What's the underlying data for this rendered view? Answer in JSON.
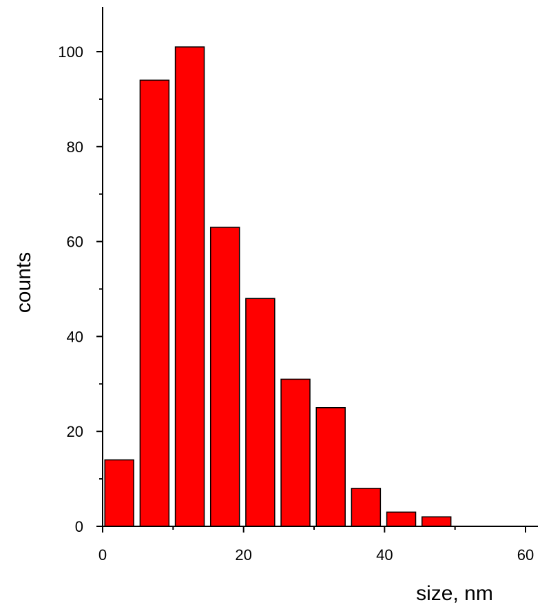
{
  "chart_data": {
    "type": "bar",
    "title": "",
    "xlabel": "size, nm",
    "ylabel": "counts",
    "xlim": [
      0,
      62
    ],
    "ylim": [
      0,
      110
    ],
    "x_ticks": [
      0,
      20,
      40,
      60
    ],
    "x_tick_labels": [
      "0",
      "20",
      "40",
      "60"
    ],
    "x_minor_ticks": [
      10,
      30,
      50
    ],
    "y_ticks": [
      0,
      20,
      40,
      60,
      80,
      100
    ],
    "y_tick_labels": [
      "0",
      "20",
      "40",
      "60",
      "80",
      "100"
    ],
    "y_minor_ticks": [
      10,
      30,
      50,
      70,
      90
    ],
    "grid": false,
    "bin_width": 5,
    "series": [
      {
        "bins": [
          [
            0,
            5
          ],
          [
            5,
            10
          ],
          [
            10,
            15
          ],
          [
            15,
            20
          ],
          [
            20,
            25
          ],
          [
            25,
            30
          ],
          [
            30,
            35
          ],
          [
            35,
            40
          ],
          [
            40,
            45
          ],
          [
            45,
            50
          ]
        ],
        "values": [
          14,
          94,
          101,
          63,
          48,
          31,
          25,
          8,
          3,
          2
        ]
      }
    ],
    "colors": {
      "bar_fill": "#ff0000",
      "bar_stroke": "#000000",
      "axis": "#000000"
    }
  }
}
